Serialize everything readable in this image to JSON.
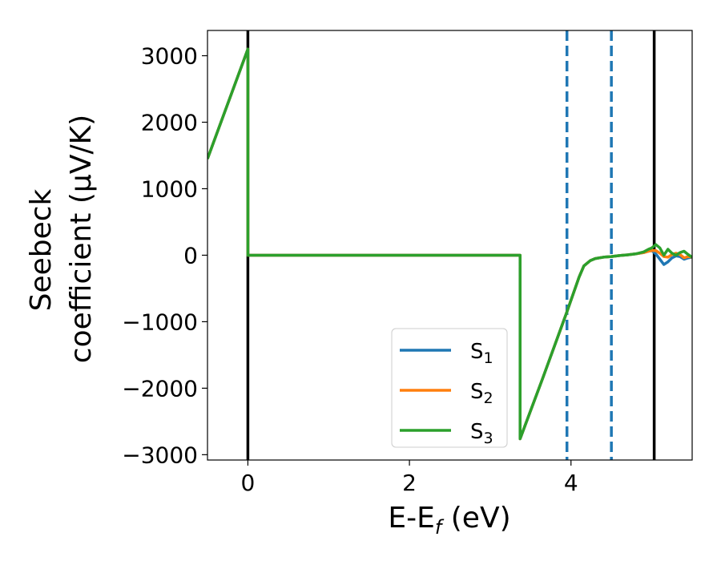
{
  "chart_data": {
    "type": "line",
    "xlabel_main": "E-E",
    "xlabel_sub": "f",
    "xlabel_unit": " (eV)",
    "ylabel_line1": "Seebeck",
    "ylabel_line2": "coefficient  (μV/K)",
    "xlim": [
      -0.5,
      5.5
    ],
    "ylim": [
      -3080,
      3380
    ],
    "xticks": [
      0,
      2,
      4
    ],
    "xtick_labels": [
      "0",
      "2",
      "4"
    ],
    "yticks": [
      3000,
      2000,
      1000,
      0,
      -1000,
      -2000,
      -3000
    ],
    "ytick_labels": [
      "3000",
      "2000",
      "1000",
      "0",
      "−1000",
      "−2000",
      "−3000"
    ],
    "grid": false,
    "legend_position": "lower-center",
    "vertical_lines": [
      {
        "x": 0,
        "style": "solid",
        "color": "#000000"
      },
      {
        "x": 5.03,
        "style": "solid",
        "color": "#000000"
      },
      {
        "x": 3.95,
        "style": "dashed",
        "color": "#1f77b4"
      },
      {
        "x": 4.5,
        "style": "dashed",
        "color": "#1f77b4"
      }
    ],
    "series": [
      {
        "name_main": "S",
        "name_sub": "1",
        "color": "#1f77b4",
        "x": [
          -0.5,
          0,
          0,
          3.37,
          3.37,
          3.65,
          3.95,
          4.1,
          4.16,
          4.24,
          4.3,
          4.4,
          4.5,
          4.6,
          4.7,
          4.8,
          4.9,
          4.96,
          5.0,
          5.05,
          5.1,
          5.15,
          5.2,
          5.25,
          5.3,
          5.35,
          5.4,
          5.45,
          5.5
        ],
        "y": [
          1450,
          3100,
          0,
          0,
          -2760,
          -1850,
          -850,
          -330,
          -160,
          -80,
          -50,
          -30,
          -20,
          -5,
          5,
          20,
          40,
          60,
          70,
          20,
          -60,
          -140,
          -100,
          -40,
          -10,
          -20,
          -60,
          -40,
          -30
        ]
      },
      {
        "name_main": "S",
        "name_sub": "2",
        "color": "#ff7f0e",
        "x": [
          -0.5,
          0,
          0,
          3.37,
          3.37,
          3.65,
          3.95,
          4.1,
          4.16,
          4.24,
          4.3,
          4.4,
          4.5,
          4.6,
          4.7,
          4.8,
          4.9,
          4.96,
          5.0,
          5.05,
          5.1,
          5.15,
          5.2,
          5.25,
          5.3,
          5.35,
          5.4,
          5.45,
          5.5
        ],
        "y": [
          1450,
          3100,
          0,
          0,
          -2760,
          -1850,
          -850,
          -330,
          -160,
          -80,
          -50,
          -30,
          -20,
          -5,
          5,
          20,
          40,
          60,
          70,
          70,
          30,
          -20,
          -30,
          10,
          30,
          10,
          -40,
          -20,
          -30
        ]
      },
      {
        "name_main": "S",
        "name_sub": "3",
        "color": "#2ca02c",
        "x": [
          -0.5,
          0,
          0,
          3.37,
          3.37,
          3.65,
          3.95,
          4.1,
          4.16,
          4.24,
          4.3,
          4.4,
          4.5,
          4.6,
          4.7,
          4.8,
          4.9,
          4.96,
          5.0,
          5.05,
          5.1,
          5.15,
          5.2,
          5.25,
          5.3,
          5.35,
          5.4,
          5.45,
          5.5
        ],
        "y": [
          1450,
          3100,
          0,
          0,
          -2760,
          -1850,
          -850,
          -330,
          -160,
          -80,
          -50,
          -30,
          -20,
          -5,
          5,
          20,
          50,
          90,
          110,
          160,
          110,
          0,
          90,
          30,
          0,
          40,
          60,
          10,
          -30
        ]
      }
    ]
  }
}
